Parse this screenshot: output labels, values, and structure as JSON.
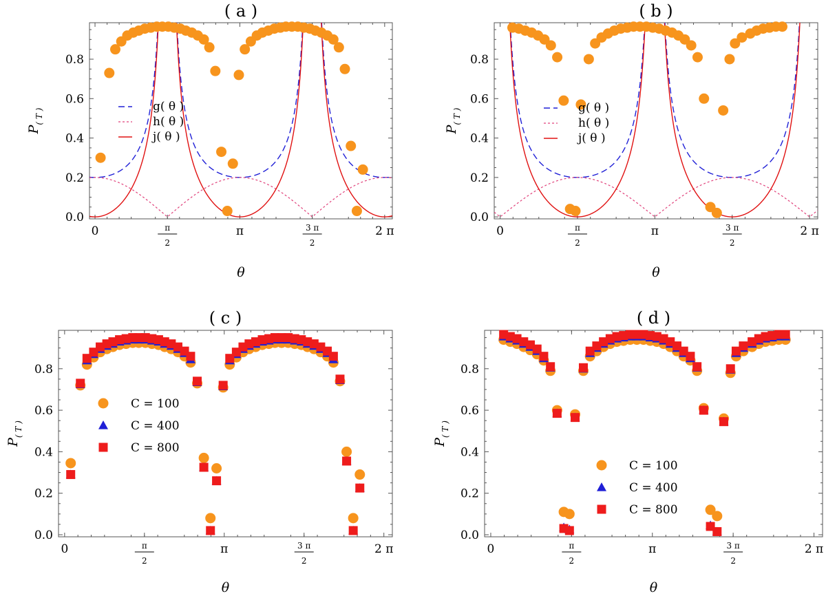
{
  "figure": {
    "x_axis_label": "θ",
    "y_axis_label": "P",
    "y_axis_subscript": "( T )",
    "x_tick_labels": [
      {
        "value": 0,
        "text": "0"
      },
      {
        "value": 1.5708,
        "num": "π",
        "den": "2"
      },
      {
        "value": 3.1416,
        "text": "π"
      },
      {
        "value": 4.7124,
        "num": "3  π",
        "den": "2"
      },
      {
        "value": 6.2832,
        "text": "2  π"
      }
    ],
    "y_ticks": [
      0.0,
      0.2,
      0.4,
      0.6,
      0.8
    ],
    "y_tick_labels": [
      "0.0",
      "0.2",
      "0.4",
      "0.6",
      "0.8"
    ],
    "colors": {
      "orange": "#f7941d",
      "blue": "#1f1fd6",
      "red": "#ee1c1c",
      "red_curve": "#e01010",
      "pink": "#e0407a",
      "axis": "#555555"
    }
  },
  "chart_data": [
    {
      "type": "scatter",
      "title": "( a )",
      "xlim": [
        -0.12,
        6.45
      ],
      "ylim": [
        -0.01,
        0.985
      ],
      "curves": [
        {
          "name": "g( θ )",
          "style": "dashed-blue",
          "formula": "0.2/|cos θ|"
        },
        {
          "name": "h( θ )",
          "style": "dotted-pink",
          "formula": "0.2|cos θ|"
        },
        {
          "name": "j( θ )",
          "style": "solid-red",
          "formula": "0.2(1/|cos θ| − |cos θ|)"
        }
      ],
      "series": [
        {
          "marker": "circle",
          "x": [
            0.12,
            0.31,
            0.44,
            0.57,
            0.7,
            0.83,
            0.95,
            1.08,
            1.21,
            1.34,
            1.46,
            1.59,
            1.72,
            1.85,
            1.97,
            2.1,
            2.23,
            2.36,
            2.48,
            2.61,
            2.74,
            2.87,
            2.99,
            3.12,
            3.25,
            3.38,
            3.51,
            3.63,
            3.76,
            3.89,
            4.02,
            4.14,
            4.27,
            4.4,
            4.53,
            4.66,
            4.78,
            4.91,
            5.04,
            5.17,
            5.29,
            5.42,
            5.55,
            5.68,
            5.81,
            5.93,
            6.06,
            6.19,
            6.32
          ],
          "y": [
            0.3,
            0.73,
            0.85,
            0.89,
            0.92,
            0.935,
            0.945,
            0.955,
            0.96,
            0.965,
            0.965,
            0.965,
            0.96,
            0.955,
            0.945,
            0.935,
            0.92,
            0.9,
            0.86,
            0.74,
            0.33,
            0.03,
            0.27,
            0.72,
            0.85,
            0.89,
            0.92,
            0.935,
            0.945,
            0.955,
            0.96,
            0.965,
            0.965,
            0.965,
            0.96,
            0.955,
            0.945,
            0.935,
            0.92,
            0.9,
            0.86,
            0.75,
            0.36,
            0.03,
            0.24,
            null,
            null,
            null,
            null
          ]
        }
      ],
      "legend_position": "center-left"
    },
    {
      "type": "scatter",
      "title": "( b )",
      "xlim": [
        -0.12,
        6.45
      ],
      "ylim": [
        -0.01,
        0.985
      ],
      "curves": [
        {
          "name": "g( θ )",
          "style": "dashed-blue",
          "formula": "0.2/|sin θ|"
        },
        {
          "name": "h( θ )",
          "style": "dotted-pink",
          "formula": "0.2|sin θ|"
        },
        {
          "name": "j( θ )",
          "style": "solid-red",
          "formula": "0.2(1/|sin θ| − |sin θ|)"
        }
      ],
      "series": [
        {
          "marker": "circle",
          "x": [
            0.25,
            0.38,
            0.51,
            0.64,
            0.77,
            0.9,
            1.03,
            1.16,
            1.29,
            1.42,
            1.53,
            1.64,
            1.8,
            1.93,
            2.06,
            2.19,
            2.32,
            2.45,
            2.58,
            2.71,
            2.84,
            2.97,
            3.1,
            3.23,
            3.36,
            3.49,
            3.62,
            3.75,
            3.88,
            4.01,
            4.14,
            4.27,
            4.4,
            4.53,
            4.66,
            4.77,
            4.91,
            5.08,
            5.21,
            5.34,
            5.47,
            5.6,
            5.73,
            5.86,
            5.99,
            6.12,
            6.25
          ],
          "y": [
            0.96,
            0.955,
            0.945,
            0.935,
            0.92,
            0.9,
            0.87,
            0.81,
            0.59,
            0.04,
            0.03,
            0.57,
            0.8,
            0.88,
            0.91,
            0.93,
            0.945,
            0.955,
            0.96,
            0.965,
            0.965,
            0.965,
            0.96,
            0.955,
            0.945,
            0.935,
            0.92,
            0.9,
            0.87,
            0.81,
            0.6,
            0.05,
            0.02,
            0.54,
            0.8,
            0.88,
            0.91,
            0.93,
            0.945,
            0.955,
            0.96,
            0.965,
            0.965,
            null,
            null,
            null,
            null
          ]
        }
      ],
      "legend_position": "center"
    },
    {
      "type": "scatter",
      "title": "( c )",
      "xlim": [
        -0.12,
        6.45
      ],
      "ylim": [
        -0.01,
        0.985
      ],
      "series": [
        {
          "name": "C = 100",
          "marker": "circle",
          "x": [
            0.12,
            0.31,
            0.44,
            0.57,
            0.7,
            0.83,
            0.95,
            1.08,
            1.21,
            1.34,
            1.46,
            1.59,
            1.72,
            1.85,
            1.97,
            2.1,
            2.23,
            2.36,
            2.48,
            2.61,
            2.74,
            2.87,
            2.99,
            3.12,
            3.25,
            3.38,
            3.51,
            3.63,
            3.76,
            3.89,
            4.02,
            4.14,
            4.27,
            4.4,
            4.53,
            4.66,
            4.78,
            4.91,
            5.04,
            5.17,
            5.29,
            5.42,
            5.55,
            5.68,
            5.81,
            5.93,
            6.06,
            6.19
          ],
          "y": [
            0.345,
            0.72,
            0.82,
            0.855,
            0.88,
            0.895,
            0.905,
            0.915,
            0.92,
            0.925,
            0.925,
            0.925,
            0.92,
            0.915,
            0.905,
            0.895,
            0.88,
            0.86,
            0.83,
            0.73,
            0.37,
            0.08,
            0.32,
            0.71,
            0.82,
            0.855,
            0.88,
            0.895,
            0.905,
            0.915,
            0.92,
            0.925,
            0.925,
            0.925,
            0.92,
            0.915,
            0.905,
            0.895,
            0.88,
            0.86,
            0.83,
            0.74,
            0.4,
            0.08,
            0.29,
            null,
            null,
            null
          ]
        },
        {
          "name": "C = 400",
          "marker": "triangle",
          "x": [
            0.12,
            0.31,
            0.44,
            0.57,
            0.7,
            0.83,
            0.95,
            1.08,
            1.21,
            1.34,
            1.46,
            1.59,
            1.72,
            1.85,
            1.97,
            2.1,
            2.23,
            2.36,
            2.48,
            2.61,
            2.74,
            2.87,
            2.99,
            3.12,
            3.25,
            3.38,
            3.51,
            3.63,
            3.76,
            3.89,
            4.02,
            4.14,
            4.27,
            4.4,
            4.53,
            4.66,
            4.78,
            4.91,
            5.04,
            5.17,
            5.29,
            5.42,
            5.55,
            5.68,
            5.81,
            5.93,
            6.06,
            6.19
          ],
          "y": [
            0.29,
            0.725,
            0.84,
            0.87,
            0.895,
            0.91,
            0.92,
            0.93,
            0.935,
            0.94,
            0.94,
            0.94,
            0.935,
            0.93,
            0.92,
            0.91,
            0.895,
            0.875,
            0.845,
            0.735,
            0.325,
            0.02,
            0.26,
            0.715,
            0.84,
            0.87,
            0.895,
            0.91,
            0.92,
            0.93,
            0.935,
            0.94,
            0.94,
            0.94,
            0.935,
            0.93,
            0.92,
            0.91,
            0.895,
            0.875,
            0.845,
            0.745,
            0.355,
            0.02,
            0.225,
            null,
            null,
            null
          ]
        },
        {
          "name": "C = 800",
          "marker": "square",
          "x": [
            0.12,
            0.31,
            0.44,
            0.57,
            0.7,
            0.83,
            0.95,
            1.08,
            1.21,
            1.34,
            1.46,
            1.59,
            1.72,
            1.85,
            1.97,
            2.1,
            2.23,
            2.36,
            2.48,
            2.61,
            2.74,
            2.87,
            2.99,
            3.12,
            3.25,
            3.38,
            3.51,
            3.63,
            3.76,
            3.89,
            4.02,
            4.14,
            4.27,
            4.4,
            4.53,
            4.66,
            4.78,
            4.91,
            5.04,
            5.17,
            5.29,
            5.42,
            5.55,
            5.68,
            5.81,
            5.93,
            6.06,
            6.19
          ],
          "y": [
            0.29,
            0.73,
            0.85,
            0.88,
            0.905,
            0.92,
            0.93,
            0.94,
            0.945,
            0.95,
            0.95,
            0.95,
            0.945,
            0.94,
            0.93,
            0.92,
            0.905,
            0.885,
            0.86,
            0.74,
            0.325,
            0.02,
            0.26,
            0.72,
            0.85,
            0.88,
            0.905,
            0.92,
            0.93,
            0.94,
            0.945,
            0.95,
            0.95,
            0.95,
            0.945,
            0.94,
            0.93,
            0.92,
            0.905,
            0.885,
            0.86,
            0.75,
            0.355,
            0.02,
            0.225,
            null,
            null,
            null
          ]
        }
      ],
      "legend_position": "lower-left"
    },
    {
      "type": "scatter",
      "title": "( d )",
      "xlim": [
        -0.12,
        6.45
      ],
      "ylim": [
        -0.01,
        0.985
      ],
      "series": [
        {
          "name": "C = 100",
          "marker": "circle",
          "x": [
            0.25,
            0.38,
            0.51,
            0.64,
            0.77,
            0.9,
            1.03,
            1.16,
            1.29,
            1.42,
            1.53,
            1.64,
            1.8,
            1.93,
            2.06,
            2.19,
            2.32,
            2.45,
            2.58,
            2.71,
            2.84,
            2.97,
            3.1,
            3.23,
            3.36,
            3.49,
            3.62,
            3.75,
            3.88,
            4.01,
            4.14,
            4.27,
            4.4,
            4.53,
            4.66,
            4.77,
            4.91,
            5.08,
            5.21,
            5.34,
            5.47,
            5.6,
            5.73,
            5.86,
            5.99,
            6.12,
            6.25
          ],
          "y": [
            0.94,
            0.93,
            0.92,
            0.905,
            0.89,
            0.87,
            0.84,
            0.79,
            0.6,
            0.11,
            0.1,
            0.58,
            0.79,
            0.86,
            0.885,
            0.905,
            0.92,
            0.93,
            0.935,
            0.94,
            0.94,
            0.94,
            0.935,
            0.93,
            0.92,
            0.905,
            0.885,
            0.86,
            0.84,
            0.79,
            0.61,
            0.12,
            0.09,
            0.56,
            0.78,
            0.86,
            0.885,
            0.905,
            0.92,
            0.93,
            0.935,
            0.94,
            0.94,
            null,
            null,
            null,
            null
          ]
        },
        {
          "name": "C = 400",
          "marker": "triangle",
          "x": [
            0.25,
            0.38,
            0.51,
            0.64,
            0.77,
            0.9,
            1.03,
            1.16,
            1.29,
            1.42,
            1.53,
            1.64,
            1.8,
            1.93,
            2.06,
            2.19,
            2.32,
            2.45,
            2.58,
            2.71,
            2.84,
            2.97,
            3.1,
            3.23,
            3.36,
            3.49,
            3.62,
            3.75,
            3.88,
            4.01,
            4.14,
            4.27,
            4.4,
            4.53,
            4.66,
            4.77,
            4.91,
            5.08,
            5.21,
            5.34,
            5.47,
            5.6,
            5.73,
            5.86,
            5.99,
            6.12,
            6.25
          ],
          "y": [
            0.955,
            0.945,
            0.935,
            0.92,
            0.905,
            0.885,
            0.85,
            0.805,
            0.585,
            0.035,
            0.025,
            0.565,
            0.8,
            0.875,
            0.9,
            0.92,
            0.935,
            0.945,
            0.95,
            0.955,
            0.955,
            0.955,
            0.95,
            0.945,
            0.935,
            0.92,
            0.9,
            0.875,
            0.85,
            0.805,
            0.6,
            0.045,
            0.015,
            0.545,
            0.795,
            0.875,
            0.9,
            0.92,
            0.935,
            0.945,
            0.95,
            0.955,
            0.955,
            null,
            null,
            null,
            null
          ]
        },
        {
          "name": "C = 800",
          "marker": "square",
          "x": [
            0.25,
            0.38,
            0.51,
            0.64,
            0.77,
            0.9,
            1.03,
            1.16,
            1.29,
            1.42,
            1.53,
            1.64,
            1.8,
            1.93,
            2.06,
            2.19,
            2.32,
            2.45,
            2.58,
            2.71,
            2.84,
            2.97,
            3.1,
            3.23,
            3.36,
            3.49,
            3.62,
            3.75,
            3.88,
            4.01,
            4.14,
            4.27,
            4.4,
            4.53,
            4.66,
            4.77,
            4.91,
            5.08,
            5.21,
            5.34,
            5.47,
            5.6,
            5.73,
            5.86,
            5.99,
            6.12,
            6.25
          ],
          "y": [
            0.965,
            0.955,
            0.945,
            0.93,
            0.915,
            0.895,
            0.86,
            0.81,
            0.585,
            0.03,
            0.02,
            0.565,
            0.805,
            0.885,
            0.91,
            0.93,
            0.945,
            0.955,
            0.96,
            0.965,
            0.965,
            0.965,
            0.96,
            0.955,
            0.945,
            0.93,
            0.91,
            0.885,
            0.86,
            0.81,
            0.6,
            0.04,
            0.015,
            0.545,
            0.8,
            0.885,
            0.91,
            0.93,
            0.945,
            0.955,
            0.96,
            0.965,
            0.965,
            null,
            null,
            null,
            null
          ]
        }
      ],
      "legend_position": "lower-center"
    }
  ]
}
